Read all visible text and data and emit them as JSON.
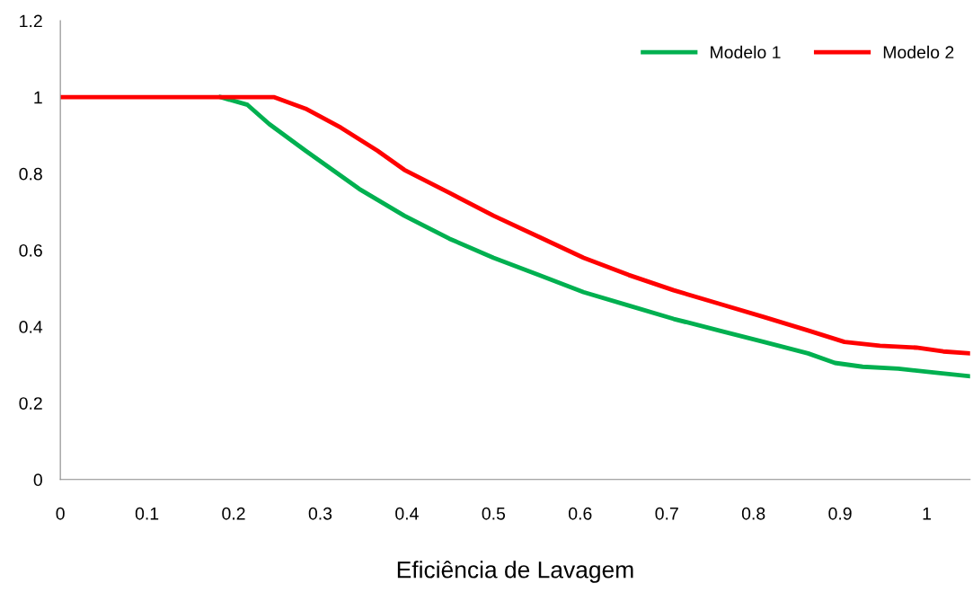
{
  "chart_data": {
    "type": "line",
    "xlabel": "Eficiência de Lavagem",
    "xlim": [
      0,
      1.05
    ],
    "xticks": [
      0,
      0.1,
      0.2,
      0.3,
      0.4,
      0.5,
      0.6,
      0.7,
      0.8,
      0.9,
      1
    ],
    "ylim": [
      0,
      1.2
    ],
    "yticks": [
      0,
      0.2,
      0.4,
      0.6,
      0.8,
      1,
      1.2
    ],
    "grid": false,
    "legend": "top right",
    "marker": "none",
    "line_style": "solid",
    "series": [
      {
        "name": "Modelo 1",
        "color": "#00b050",
        "x": [
          0.185,
          0.216,
          0.241,
          0.283,
          0.345,
          0.397,
          0.449,
          0.5,
          0.552,
          0.604,
          0.656,
          0.708,
          0.76,
          0.812,
          0.863,
          0.894,
          0.926,
          0.967,
          1.008,
          1.05
        ],
        "values": [
          1,
          0.98,
          0.93,
          0.86,
          0.76,
          0.69,
          0.63,
          0.58,
          0.535,
          0.49,
          0.455,
          0.42,
          0.39,
          0.36,
          0.33,
          0.305,
          0.295,
          0.29,
          0.28,
          0.27
        ]
      },
      {
        "name": "Modelo 2",
        "color": "#ff0000",
        "x": [
          0,
          0.247,
          0.283,
          0.324,
          0.366,
          0.397,
          0.449,
          0.5,
          0.552,
          0.604,
          0.656,
          0.708,
          0.76,
          0.812,
          0.863,
          0.905,
          0.946,
          0.988,
          1.019,
          1.05
        ],
        "values": [
          1,
          1,
          0.97,
          0.92,
          0.86,
          0.81,
          0.75,
          0.69,
          0.635,
          0.58,
          0.535,
          0.495,
          0.46,
          0.425,
          0.39,
          0.36,
          0.35,
          0.345,
          0.335,
          0.33
        ]
      }
    ]
  }
}
